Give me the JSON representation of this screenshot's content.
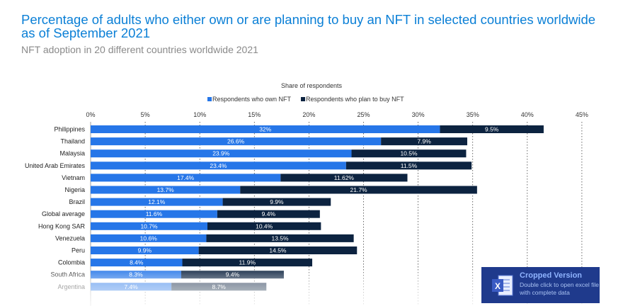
{
  "header": {
    "title": "Percentage of adults who either own or are planning to buy an NFT in selected countries worldwide as of September 2021",
    "subtitle": "NFT adoption in 20 different countries worldwide 2021"
  },
  "chart_data": {
    "type": "bar",
    "orientation": "horizontal",
    "stacked": true,
    "axis_title": "Share of respondents",
    "x_ticks": [
      "0%",
      "5%",
      "10%",
      "15%",
      "20%",
      "25%",
      "30%",
      "35%",
      "40%",
      "45%"
    ],
    "xlim": [
      0,
      45
    ],
    "grid": true,
    "legend_position": "top",
    "categories": [
      "Philippines",
      "Thailand",
      "Malaysia",
      "United Arab Emirates",
      "Vietnam",
      "Nigeria",
      "Brazil",
      "Global average",
      "Hong Kong SAR",
      "Venezuela",
      "Peru",
      "Colombia",
      "South Africa",
      "Argentina"
    ],
    "series": [
      {
        "name": "Respondents who own NFT",
        "color": "#2676e8",
        "values": [
          32,
          26.6,
          23.9,
          23.4,
          17.4,
          13.7,
          12.1,
          11.6,
          10.7,
          10.6,
          9.9,
          8.4,
          8.3,
          7.4
        ],
        "labels": [
          "32%",
          "26.6%",
          "23.9%",
          "23.4%",
          "17.4%",
          "13.7%",
          "12.1%",
          "11.6%",
          "10.7%",
          "10.6%",
          "9.9%",
          "8.4%",
          "8.3%",
          "7.4%"
        ]
      },
      {
        "name": "Respondents who plan to buy NFT",
        "color": "#0c2340",
        "values": [
          9.5,
          7.9,
          10.5,
          11.5,
          11.62,
          21.7,
          9.9,
          9.4,
          10.4,
          13.5,
          14.5,
          11.9,
          9.4,
          8.7
        ],
        "labels": [
          "9.5%",
          "7.9%",
          "10.5%",
          "11.5%",
          "11.62%",
          "21.7%",
          "9.9%",
          "9.4%",
          "10.4%",
          "13.5%",
          "14.5%",
          "11.9%",
          "9.4%",
          "8.7%"
        ]
      }
    ]
  },
  "overlay": {
    "title": "Cropped Version",
    "description": "Double click to open excel file with complete data",
    "icon": "excel-icon"
  }
}
